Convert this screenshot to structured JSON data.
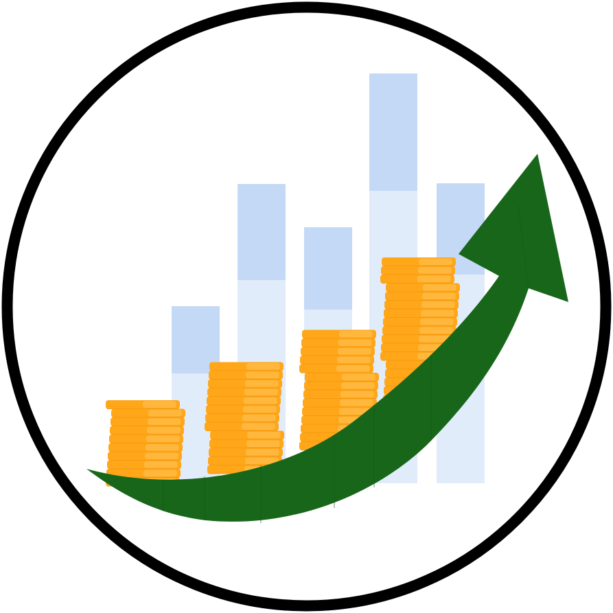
{
  "colors": {
    "background": "#ffffff",
    "ring": "#000000",
    "bar_top": "#c4d9f5",
    "bar_bottom": "#e1ecfb",
    "coin_face": "#ffa619",
    "coin_edge": "#ffb83d",
    "coin_shade": "#f59a12",
    "arrow": "#18661a"
  },
  "icons": {
    "ring": "circle-outline-icon",
    "bars": "bar-chart-icon",
    "coins": "coin-stack-icon",
    "arrow": "growth-arrow-icon"
  },
  "coin_stacks": [
    {
      "coins": 10
    },
    {
      "coins": 13
    },
    {
      "coins": 15
    },
    {
      "coins": 18
    }
  ]
}
